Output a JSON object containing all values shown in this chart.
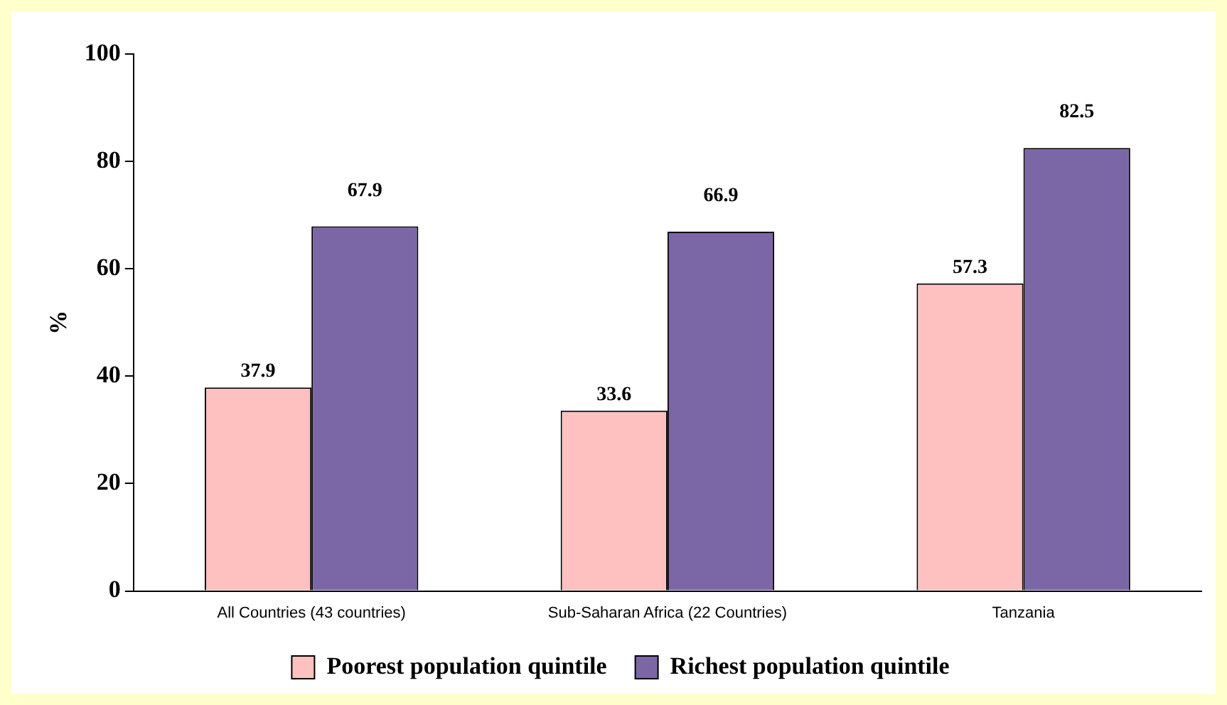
{
  "chart_data": {
    "type": "bar",
    "ylabel": "%",
    "categories": [
      "All Countries (43 countries)",
      "Sub-Saharan Africa (22 Countries)",
      "Tanzania"
    ],
    "series": [
      {
        "name": "Poorest population quintile",
        "color": "#ffc0c0",
        "values": [
          37.9,
          33.6,
          57.3
        ]
      },
      {
        "name": "Richest population quintile",
        "color": "#7b67a6",
        "values": [
          67.9,
          66.9,
          82.5
        ]
      }
    ],
    "ylim": [
      0,
      100
    ],
    "yticks": [
      0,
      20,
      40,
      60,
      80,
      100
    ],
    "grid": false,
    "legend": "bottom",
    "data_labels": true
  }
}
